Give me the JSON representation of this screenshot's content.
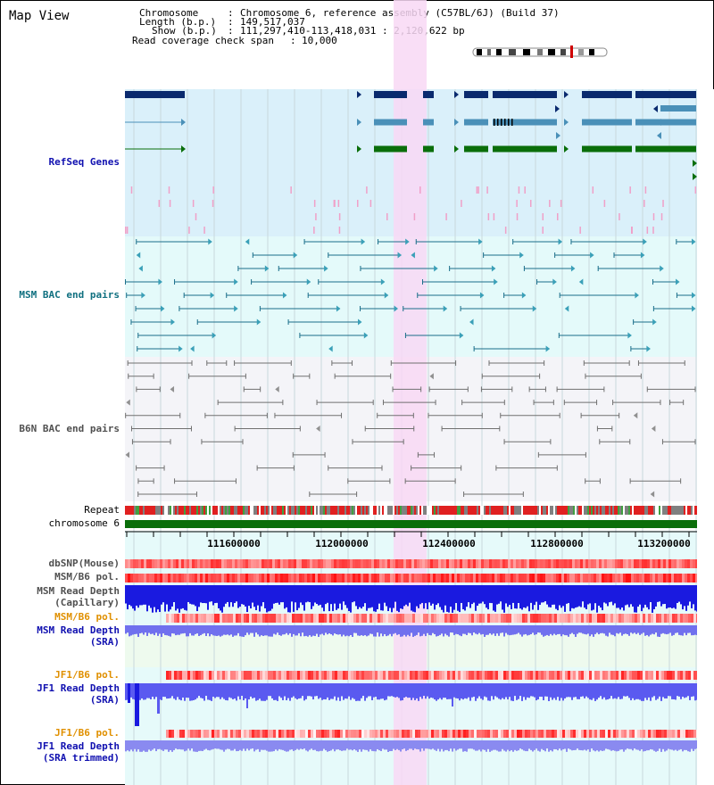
{
  "title": "Map View",
  "info": {
    "chromosome_key": "Chromosome",
    "chromosome_value": "Chromosome 6, reference assembly (C57BL/6J) (Build 37)",
    "length_key": "Length (b.p.)",
    "length_value": "149,517,037",
    "show_key": "Show (b.p.)",
    "show_value": "111,297,410-113,418,031 : 2,120,622 bp",
    "coverage_key": "Read coverage check span",
    "coverage_value": "10,000"
  },
  "tracks": {
    "refseq": "RefSeq Genes",
    "msm_bac": "MSM BAC end pairs",
    "b6n_bac": "B6N BAC end pairs",
    "repeat": "Repeat",
    "chromosome": "chromosome 6",
    "dbsnp": "dbSNP(Mouse)",
    "msm_b6_pol_1": "MSM/B6 pol.",
    "msm_depth_cap_1": "MSM Read Depth",
    "msm_depth_cap_2": "(Capillary)",
    "msm_b6_pol_2": "MSM/B6 pol.",
    "msm_depth_sra_1": "MSM Read Depth",
    "msm_depth_sra_2": "(SRA)",
    "jf1_b6_pol_1": "JF1/B6 pol.",
    "jf1_depth_sra_1": "JF1 Read Depth",
    "jf1_depth_sra_2": "(SRA)",
    "jf1_b6_pol_2": "JF1/B6 pol.",
    "jf1_depth_trim_1": "JF1 Read Depth",
    "jf1_depth_trim_2": "(SRA trimmed)"
  },
  "ruler": [
    "111600000",
    "112000000",
    "112400000",
    "112800000",
    "113200000"
  ],
  "colors": {
    "refseq_bg": "#daf0fa",
    "bac_bg": "#e4fafa",
    "b6n_bg": "#f4f4f8",
    "highlight": "#f8d8f4",
    "navy": "#0a2a6e",
    "steel": "#4a90b8",
    "green": "#0a6e0a",
    "teal": "#1a6e8a",
    "gray": "#707070",
    "label_blue": "#1010b0",
    "label_teal": "#107080",
    "label_orange": "#e09000",
    "red": "#e02020",
    "depth_blue": "#1a1ae0",
    "depth_light": "#8080f0"
  }
}
